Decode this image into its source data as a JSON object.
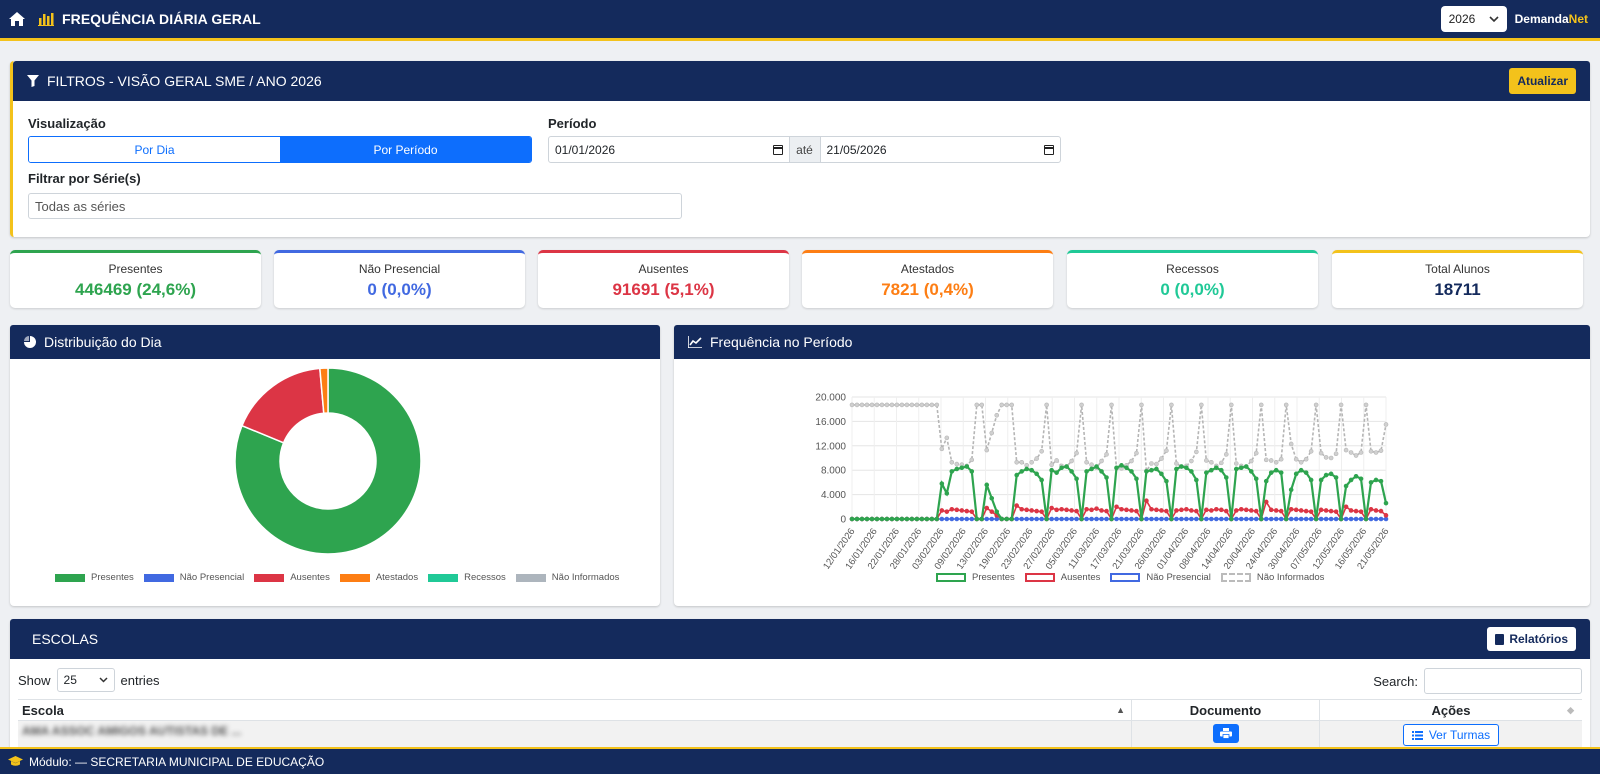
{
  "header": {
    "title": "FREQUÊNCIA DIÁRIA GERAL",
    "year": "2026",
    "brand_a": "Demanda",
    "brand_b": "Net"
  },
  "filters": {
    "title": "FILTROS - VISÃO GERAL SME / ANO 2026",
    "update_label": "Atualizar",
    "visualizacao_label": "Visualização",
    "view_options": [
      "Por Dia",
      "Por Período"
    ],
    "periodo_label": "Período",
    "date_from": "01/01/2026",
    "ate_label": "até",
    "date_to": "21/05/2026",
    "serie_label": "Filtrar por Série(s)",
    "serie_placeholder": "Todas as séries"
  },
  "stats": [
    {
      "label": "Presentes",
      "value": "446469 (24,6%)",
      "color": "#2ea44f"
    },
    {
      "label": "Não Presencial",
      "value": "0 (0,0%)",
      "color": "#4169e1"
    },
    {
      "label": "Ausentes",
      "value": "91691 (5,1%)",
      "color": "#dc3545"
    },
    {
      "label": "Atestados",
      "value": "7821 (0,4%)",
      "color": "#fd7e14"
    },
    {
      "label": "Recessos",
      "value": "0 (0,0%)",
      "color": "#20c997"
    },
    {
      "label": "Total Alunos",
      "value": "18711",
      "color": "#142a5c"
    }
  ],
  "dist": {
    "title": "Distribuição do Dia",
    "legend": [
      {
        "label": "Presentes",
        "color": "#2ea44f"
      },
      {
        "label": "Não Presencial",
        "color": "#4169e1"
      },
      {
        "label": "Ausentes",
        "color": "#dc3545"
      },
      {
        "label": "Atestados",
        "color": "#fd7e14"
      },
      {
        "label": "Recessos",
        "color": "#20c997"
      },
      {
        "label": "Não Informados",
        "color": "#adb5bd"
      }
    ]
  },
  "freq": {
    "title": "Frequência no Período",
    "legend": [
      {
        "label": "Presentes",
        "color": "#2ea44f"
      },
      {
        "label": "Ausentes",
        "color": "#dc3545"
      },
      {
        "label": "Não Presencial",
        "color": "#4169e1"
      },
      {
        "label": "Não Informados",
        "color": "#bbbbbb"
      }
    ]
  },
  "chart_data": [
    {
      "type": "pie",
      "title": "Distribuição do Dia",
      "categories": [
        "Presentes",
        "Não Presencial",
        "Ausentes",
        "Atestados",
        "Recessos",
        "Não Informados"
      ],
      "values": [
        81.2,
        0,
        17.4,
        1.4,
        0,
        0
      ]
    },
    {
      "type": "line",
      "title": "Frequência no Período",
      "x_ticks": [
        "12/01/2026",
        "16/01/2026",
        "22/01/2026",
        "28/01/2026",
        "03/02/2026",
        "09/02/2026",
        "13/02/2026",
        "19/02/2026",
        "23/02/2026",
        "27/02/2026",
        "05/03/2026",
        "11/03/2026",
        "17/03/2026",
        "21/03/2026",
        "26/03/2026",
        "01/04/2026",
        "08/04/2026",
        "14/04/2026",
        "20/04/2026",
        "24/04/2026",
        "30/04/2026",
        "07/05/2026",
        "12/05/2026",
        "16/05/2026",
        "21/05/2026"
      ],
      "y_ticks": [
        "0",
        "4.000",
        "8.000",
        "12.000",
        "16.000",
        "20.000"
      ],
      "ylim": [
        0,
        20000
      ],
      "series": [
        {
          "name": "Presentes",
          "values": [
            0,
            0,
            0,
            0,
            0,
            0,
            0,
            0,
            0,
            0,
            0,
            0,
            0,
            0,
            0,
            0,
            0,
            0,
            5800,
            4200,
            7800,
            8200,
            8400,
            8600,
            7800,
            0,
            0,
            5600,
            3400,
            1200,
            0,
            0,
            0,
            7200,
            7800,
            8200,
            8000,
            7400,
            6400,
            0,
            8000,
            7600,
            8400,
            8600,
            7800,
            6600,
            0,
            7800,
            8200,
            8600,
            7800,
            6800,
            0,
            8400,
            8800,
            8400,
            7800,
            6600,
            0,
            7800,
            8000,
            8200,
            7400,
            6200,
            0,
            8200,
            8600,
            8400,
            7800,
            6400,
            0,
            7600,
            8000,
            8400,
            8000,
            6800,
            0,
            8200,
            8400,
            8600,
            7800,
            6600,
            0,
            6200,
            7600,
            8000,
            7600,
            0,
            4800,
            7400,
            8000,
            7600,
            6400,
            0,
            6400,
            7200,
            7400,
            6800,
            0,
            5400,
            6400,
            7000,
            6600,
            0,
            6000,
            6400,
            6200,
            2600
          ]
        },
        {
          "name": "Ausentes",
          "values": [
            0,
            0,
            0,
            0,
            0,
            0,
            0,
            0,
            0,
            0,
            0,
            0,
            0,
            0,
            0,
            0,
            0,
            0,
            1400,
            1200,
            1600,
            1500,
            1400,
            1300,
            1200,
            0,
            0,
            1800,
            1200,
            600,
            0,
            0,
            0,
            2200,
            1600,
            1500,
            1400,
            1300,
            1200,
            0,
            1800,
            1500,
            1600,
            1500,
            1400,
            1300,
            0,
            1600,
            1500,
            1700,
            1400,
            1300,
            0,
            2000,
            1600,
            1500,
            1400,
            1300,
            0,
            3000,
            1600,
            1500,
            1400,
            1300,
            0,
            1400,
            1500,
            1600,
            1400,
            1300,
            0,
            1500,
            1400,
            1600,
            1500,
            1300,
            0,
            1400,
            1600,
            1500,
            1400,
            1300,
            0,
            2800,
            1500,
            1400,
            1300,
            0,
            1600,
            1500,
            1400,
            1300,
            1200,
            0,
            1500,
            1400,
            1300,
            1200,
            0,
            2000,
            1400,
            1300,
            1200,
            0,
            1600,
            1400,
            1300,
            600
          ]
        },
        {
          "name": "Não Presencial",
          "values": [
            0,
            0,
            0,
            0,
            0,
            0,
            0,
            0,
            0,
            0,
            0,
            0,
            0,
            0,
            0,
            0,
            0,
            0,
            0,
            0,
            0,
            0,
            0,
            0,
            0,
            0,
            0,
            0,
            0,
            0,
            0,
            0,
            0,
            0,
            0,
            0,
            0,
            0,
            0,
            0,
            0,
            0,
            0,
            0,
            0,
            0,
            0,
            0,
            0,
            0,
            0,
            0,
            0,
            0,
            0,
            0,
            0,
            0,
            0,
            0,
            0,
            0,
            0,
            0,
            0,
            0,
            0,
            0,
            0,
            0,
            0,
            0,
            0,
            0,
            0,
            0,
            0,
            0,
            0,
            0,
            0,
            0,
            0,
            0,
            0,
            0,
            0,
            0,
            0,
            0,
            0,
            0,
            0,
            0,
            0,
            0,
            0,
            0,
            0,
            0,
            0,
            0,
            0,
            0,
            0,
            0,
            0,
            0
          ]
        },
        {
          "name": "Não Informados",
          "values": [
            18700,
            18700,
            18700,
            18700,
            18700,
            18700,
            18700,
            18700,
            18700,
            18700,
            18700,
            18700,
            18700,
            18700,
            18700,
            18700,
            18700,
            18700,
            11500,
            13300,
            9300,
            9000,
            8900,
            8700,
            9700,
            18700,
            18700,
            11300,
            14100,
            17000,
            18700,
            18700,
            18700,
            9300,
            9300,
            8800,
            9300,
            9900,
            11100,
            18700,
            8900,
            9600,
            8700,
            8600,
            9500,
            10800,
            18700,
            9300,
            8900,
            8400,
            9500,
            10600,
            18700,
            8300,
            8300,
            8800,
            9500,
            10800,
            18700,
            7900,
            9100,
            9000,
            9900,
            11200,
            18700,
            9100,
            8600,
            8700,
            9500,
            11000,
            18700,
            9600,
            9300,
            8700,
            9200,
            10600,
            18700,
            9100,
            8700,
            8600,
            9500,
            10800,
            18700,
            9700,
            9600,
            9300,
            9800,
            18700,
            12300,
            9800,
            9300,
            9800,
            11100,
            18700,
            10800,
            10100,
            10000,
            10700,
            18700,
            11300,
            10900,
            10400,
            10900,
            18700,
            11100,
            10900,
            11200,
            15500
          ]
        }
      ]
    }
  ],
  "escolas": {
    "title": "ESCOLAS",
    "reports_label": "Relatórios",
    "show_label": "Show",
    "entries_value": "25",
    "entries_label": "entries",
    "search_label": "Search:",
    "columns": [
      "Escola",
      "Documento",
      "Ações"
    ],
    "rows": [
      {
        "escola": "AMA ASSOC AMIGOS AUTISTAS DE ...",
        "acao": "Ver Turmas"
      }
    ]
  },
  "footer": {
    "text": "Módulo: — SECRETARIA MUNICIPAL DE EDUCAÇÃO"
  }
}
